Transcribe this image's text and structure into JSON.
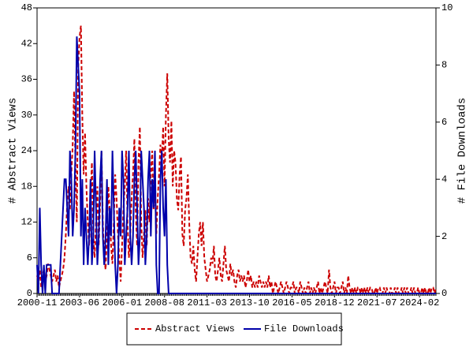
{
  "chart_data": {
    "type": "line",
    "y_label": "# Abstract Views",
    "y2_label": "# File Downloads",
    "legend": "bottom",
    "ylim": [
      0,
      48
    ],
    "yticks": [
      0,
      6,
      12,
      18,
      24,
      30,
      36,
      42,
      48
    ],
    "y2lim": [
      0,
      10
    ],
    "y2ticks": [
      0,
      2,
      4,
      6,
      8,
      10
    ],
    "categories": [
      "2000-11",
      null,
      null,
      null,
      null,
      null,
      null,
      null,
      null,
      null,
      null,
      null,
      null,
      null,
      null,
      null,
      null,
      null,
      null,
      null,
      null,
      null,
      null,
      null,
      null,
      null,
      null,
      null,
      null,
      null,
      null,
      "2003-06",
      null,
      null,
      null,
      null,
      null,
      null,
      null,
      null,
      null,
      null,
      null,
      null,
      null,
      null,
      null,
      null,
      null,
      null,
      null,
      null,
      null,
      null,
      null,
      null,
      null,
      null,
      null,
      null,
      null,
      null,
      "2006-01",
      null,
      null,
      null,
      null,
      null,
      null,
      null,
      null,
      null,
      null,
      null,
      null,
      null,
      null,
      null,
      null,
      null,
      null,
      null,
      null,
      null,
      null,
      null,
      null,
      null,
      null,
      null,
      null,
      null,
      null,
      "2008-08",
      null,
      null,
      null,
      null,
      null,
      null,
      null,
      null,
      null,
      null,
      null,
      null,
      null,
      null,
      null,
      null,
      null,
      null,
      null,
      null,
      null,
      null,
      null,
      null,
      null,
      null,
      null,
      null,
      null,
      null,
      "2011-03",
      null,
      null,
      null,
      null,
      null,
      null,
      null,
      null,
      null,
      null,
      null,
      null,
      null,
      null,
      null,
      null,
      null,
      null,
      null,
      null,
      null,
      null,
      null,
      null,
      null,
      null,
      null,
      null,
      null,
      null,
      "2013-10",
      null,
      null,
      null,
      null,
      null,
      null,
      null,
      null,
      null,
      null,
      null,
      null,
      null,
      null,
      null,
      null,
      null,
      null,
      null,
      null,
      null,
      null,
      null,
      null,
      null,
      null,
      null,
      null,
      null,
      null,
      "2016-05",
      null,
      null,
      null,
      null,
      null,
      null,
      null,
      null,
      null,
      null,
      null,
      null,
      null,
      null,
      null,
      null,
      null,
      null,
      null,
      null,
      null,
      null,
      null,
      null,
      null,
      null,
      null,
      null,
      null,
      null,
      "2018-12",
      null,
      null,
      null,
      null,
      null,
      null,
      null,
      null,
      null,
      null,
      null,
      null,
      null,
      null,
      null,
      null,
      null,
      null,
      null,
      null,
      null,
      null,
      null,
      null,
      null,
      null,
      null,
      null,
      null,
      null,
      "2021-07",
      null,
      null,
      null,
      null,
      null,
      null,
      null,
      null,
      null,
      null,
      null,
      null,
      null,
      null,
      null,
      null,
      null,
      null,
      null,
      null,
      null,
      null,
      null,
      null,
      null,
      null,
      null,
      null,
      null,
      null,
      "2024-02",
      null,
      null,
      null,
      null,
      null,
      null,
      null,
      null,
      null,
      null,
      null,
      null
    ],
    "series": [
      {
        "name": "Abstract Views",
        "color": "#cc0000",
        "dash": true,
        "axis": "y",
        "values": [
          3,
          2,
          4,
          1,
          3,
          4,
          2,
          3,
          5,
          4,
          3,
          2,
          3,
          4,
          2,
          3,
          1,
          2,
          3,
          4,
          6,
          10,
          15,
          18,
          14,
          20,
          25,
          34,
          22,
          12,
          38,
          43,
          45,
          30,
          20,
          27,
          18,
          12,
          8,
          15,
          22,
          10,
          6,
          12,
          18,
          8,
          15,
          24,
          12,
          6,
          4,
          10,
          18,
          14,
          8,
          5,
          12,
          20,
          16,
          10,
          6,
          2,
          8,
          14,
          18,
          24,
          12,
          6,
          10,
          16,
          20,
          26,
          14,
          8,
          22,
          28,
          12,
          6,
          10,
          14,
          8,
          16,
          12,
          20,
          24,
          14,
          18,
          10,
          16,
          20,
          25,
          22,
          28,
          18,
          30,
          37,
          26,
          22,
          29,
          18,
          24,
          22,
          16,
          14,
          20,
          23,
          10,
          8,
          14,
          16,
          20,
          12,
          6,
          5,
          8,
          4,
          2,
          6,
          10,
          12,
          8,
          12,
          6,
          4,
          2,
          3,
          4,
          6,
          5,
          8,
          3,
          2,
          4,
          6,
          3,
          2,
          5,
          8,
          4,
          3,
          2,
          5,
          3,
          4,
          2,
          1,
          3,
          4,
          2,
          3,
          2,
          3,
          1,
          2,
          4,
          2,
          3,
          1,
          2,
          1,
          2,
          1,
          3,
          2,
          1,
          2,
          1,
          2,
          1,
          3,
          1,
          2,
          0,
          1,
          2,
          1,
          0,
          1,
          2,
          1,
          0,
          1,
          2,
          1,
          0,
          1,
          1,
          2,
          0,
          1,
          1,
          0,
          2,
          1,
          0,
          1,
          0,
          1,
          2,
          0,
          1,
          0,
          1,
          0,
          1,
          2,
          0,
          1,
          0,
          1,
          2,
          1,
          0,
          4,
          1,
          0,
          1,
          2,
          0,
          1,
          1,
          0,
          1,
          2,
          0,
          1,
          0,
          3,
          1,
          0,
          1,
          0,
          1,
          0,
          1,
          1,
          0,
          1,
          0,
          1,
          0,
          1,
          0,
          1,
          1,
          0,
          0,
          1,
          0,
          1,
          1,
          0,
          0,
          1,
          0,
          1,
          0,
          0,
          1,
          0,
          0,
          1,
          0,
          1,
          0,
          0,
          1,
          0,
          1,
          0,
          1,
          0,
          0,
          1,
          0,
          1,
          0,
          0,
          1,
          0,
          0,
          1,
          0,
          1,
          0,
          0,
          1,
          0,
          1,
          1,
          0,
          1
        ]
      },
      {
        "name": "File Downloads",
        "color": "#0000aa",
        "dash": false,
        "axis": "y2",
        "values": [
          1,
          0,
          3,
          1,
          0,
          1,
          0,
          1,
          1,
          1,
          1,
          0,
          0,
          0,
          0,
          0,
          0,
          1,
          2,
          3,
          4,
          4,
          3,
          2,
          5,
          4,
          2,
          3,
          5,
          9,
          8,
          7,
          2,
          4,
          1,
          3,
          2,
          1,
          2,
          4,
          1,
          2,
          5,
          3,
          1,
          2,
          4,
          5,
          2,
          1,
          2,
          4,
          1,
          3,
          2,
          5,
          3,
          1,
          0,
          1,
          3,
          2,
          5,
          4,
          1,
          2,
          3,
          5,
          2,
          1,
          2,
          4,
          5,
          3,
          1,
          2,
          5,
          4,
          3,
          1,
          2,
          4,
          5,
          2,
          4,
          3,
          5,
          1,
          0,
          0,
          4,
          5,
          3,
          2,
          4,
          1,
          0,
          0,
          0,
          0,
          0,
          0,
          0,
          0,
          0,
          0,
          0,
          0,
          0,
          0,
          0,
          0,
          0,
          0,
          0,
          0,
          0,
          0,
          0,
          0,
          0,
          0,
          0,
          0,
          0,
          0,
          0,
          0,
          0,
          0,
          0,
          0,
          0,
          0,
          0,
          0,
          0,
          0,
          0,
          0,
          0,
          0,
          0,
          0,
          0,
          0,
          0,
          0,
          0,
          0,
          0,
          0,
          0,
          0,
          0,
          0,
          0,
          0,
          0,
          0,
          0,
          0,
          0,
          0,
          0,
          0,
          0,
          0,
          0,
          0,
          0,
          0,
          0,
          0,
          0,
          0,
          0,
          0,
          0,
          0,
          0,
          0,
          0,
          0,
          0,
          0,
          0,
          0,
          0,
          0,
          0,
          0,
          0,
          0,
          0,
          0,
          0,
          0,
          0,
          0,
          0,
          0,
          0,
          0,
          0,
          0,
          0,
          0,
          0,
          0,
          0,
          0,
          0,
          0,
          0,
          0,
          0,
          0,
          0,
          0,
          0,
          0,
          0,
          0,
          0,
          0,
          0,
          0,
          0,
          0,
          0,
          0,
          0,
          0,
          0,
          0,
          0,
          0,
          0,
          0,
          0,
          0,
          0,
          0,
          0,
          0,
          0,
          0,
          0,
          0,
          0,
          0,
          0,
          0,
          0,
          0,
          0,
          0,
          0,
          0,
          0,
          0,
          0,
          0,
          0,
          0,
          0,
          0,
          0,
          0,
          0,
          0,
          0,
          0,
          0,
          0,
          0,
          0,
          0,
          0,
          0,
          0,
          0,
          0,
          0,
          0,
          0,
          0,
          0,
          0,
          0,
          0
        ]
      }
    ]
  }
}
